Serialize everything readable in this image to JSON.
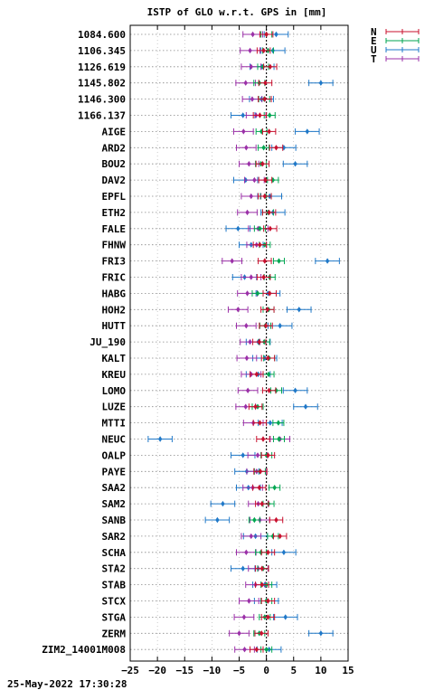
{
  "chart_data": {
    "type": "errorbar",
    "title": "ISTP of GLO w.r.t. GPS in [mm]",
    "timestamp": "25-May-2022 17:30:28",
    "xlim": [
      -25,
      15
    ],
    "x_ticks": [
      -25,
      -20,
      -15,
      -10,
      -5,
      0,
      5,
      10,
      15
    ],
    "grid": true,
    "legend_position": "top-right (outside plot)",
    "series": [
      {
        "name": "N",
        "color": "#c8102e"
      },
      {
        "name": "E",
        "color": "#00a651"
      },
      {
        "name": "U",
        "color": "#1f78c8"
      },
      {
        "name": "T",
        "color": "#9b30a8"
      }
    ],
    "stations": [
      {
        "label": "1084.600",
        "N": 0.0,
        "E": 0.0,
        "U": 1.8,
        "T": -2.5
      },
      {
        "label": "1106.345",
        "N": -0.5,
        "E": 0.3,
        "U": 1.2,
        "T": -3.0
      },
      {
        "label": "1126.619",
        "N": 0.7,
        "E": -0.6,
        "U": -0.8,
        "T": -2.8
      },
      {
        "label": "1145.802",
        "N": -0.2,
        "E": -1.3,
        "U": 10.0,
        "T": -3.8
      },
      {
        "label": "1146.300",
        "N": -0.3,
        "E": -0.4,
        "U": -0.9,
        "T": -2.6
      },
      {
        "label": "1166.137",
        "N": -1.2,
        "E": 0.6,
        "U": -4.3,
        "T": -1.9
      },
      {
        "label": "AIGE",
        "N": 0.5,
        "E": -0.9,
        "U": 7.5,
        "T": -4.2
      },
      {
        "label": "ARD2",
        "N": 1.8,
        "E": -0.5,
        "U": 3.2,
        "T": -3.7
      },
      {
        "label": "BOU2",
        "N": -0.7,
        "E": -1.0,
        "U": 5.3,
        "T": -3.2
      },
      {
        "label": "DAV2",
        "N": -0.2,
        "E": 1.2,
        "U": -3.8,
        "T": -2.2
      },
      {
        "label": "EPFL",
        "N": -0.3,
        "E": -0.1,
        "U": 0.6,
        "T": -2.8
      },
      {
        "label": "ETH2",
        "N": 0.5,
        "E": 0.3,
        "U": 1.2,
        "T": -3.5
      },
      {
        "label": "FALE",
        "N": 0.7,
        "E": -1.2,
        "U": -5.2,
        "T": -1.5
      },
      {
        "label": "FHNW",
        "N": -1.2,
        "E": -0.3,
        "U": -2.8,
        "T": -1.8
      },
      {
        "label": "FRI3",
        "N": -0.3,
        "E": 2.3,
        "U": 11.2,
        "T": -6.3
      },
      {
        "label": "FRIC",
        "N": -0.5,
        "E": 0.6,
        "U": -4.0,
        "T": -2.8
      },
      {
        "label": "HABG",
        "N": 0.6,
        "E": -1.6,
        "U": 0.3,
        "T": -3.5
      },
      {
        "label": "HOH2",
        "N": 0.2,
        "E": 0.4,
        "U": 6.0,
        "T": -5.2
      },
      {
        "label": "HUTT",
        "N": -0.1,
        "E": -0.2,
        "U": 2.5,
        "T": -3.7
      },
      {
        "label": "JU_190",
        "N": -1.3,
        "E": -0.4,
        "U": -1.5,
        "T": -3.0
      },
      {
        "label": "KALT",
        "N": 0.3,
        "E": 0.5,
        "U": -0.3,
        "T": -3.6
      },
      {
        "label": "KREU",
        "N": -1.8,
        "E": 0.4,
        "U": -1.5,
        "T": -2.8
      },
      {
        "label": "LOMO",
        "N": 0.5,
        "E": 1.8,
        "U": 5.3,
        "T": -3.4
      },
      {
        "label": "LUZE",
        "N": -2.0,
        "E": -1.6,
        "U": 7.2,
        "T": -3.8
      },
      {
        "label": "MTTI",
        "N": -1.2,
        "E": 2.2,
        "U": 0.7,
        "T": -2.4
      },
      {
        "label": "NEUC",
        "N": -0.6,
        "E": 2.3,
        "U": -19.5,
        "T": 2.5
      },
      {
        "label": "OALP",
        "N": 0.3,
        "E": 0.0,
        "U": -4.3,
        "T": -1.6
      },
      {
        "label": "PAYE",
        "N": -1.1,
        "E": -1.2,
        "U": -3.6,
        "T": -1.8
      },
      {
        "label": "SAA2",
        "N": -1.3,
        "E": 1.5,
        "U": -3.3,
        "T": -2.5
      },
      {
        "label": "SAM2",
        "N": -0.8,
        "E": 0.4,
        "U": -8.0,
        "T": -1.5
      },
      {
        "label": "SANB",
        "N": 1.8,
        "E": -2.2,
        "U": -9.0,
        "T": -1.2
      },
      {
        "label": "SAR2",
        "N": 2.5,
        "E": 1.2,
        "U": -2.0,
        "T": -2.8
      },
      {
        "label": "SCHA",
        "N": 0.3,
        "E": -1.0,
        "U": 3.2,
        "T": -3.7
      },
      {
        "label": "STA2",
        "N": -0.8,
        "E": -0.6,
        "U": -4.3,
        "T": -1.5
      },
      {
        "label": "STAB",
        "N": -0.8,
        "E": 0.0,
        "U": -0.3,
        "T": -2.0
      },
      {
        "label": "STCX",
        "N": 0.3,
        "E": 0.0,
        "U": 0.0,
        "T": -3.2
      },
      {
        "label": "STGA",
        "N": 0.3,
        "E": -0.3,
        "U": 3.5,
        "T": -4.1
      },
      {
        "label": "ZERM",
        "N": -0.9,
        "E": -1.3,
        "U": 10.0,
        "T": -5.0
      },
      {
        "label": "ZIM2_14001M008",
        "N": -1.8,
        "E": 0.0,
        "U": 0.5,
        "T": -4.0
      }
    ]
  }
}
